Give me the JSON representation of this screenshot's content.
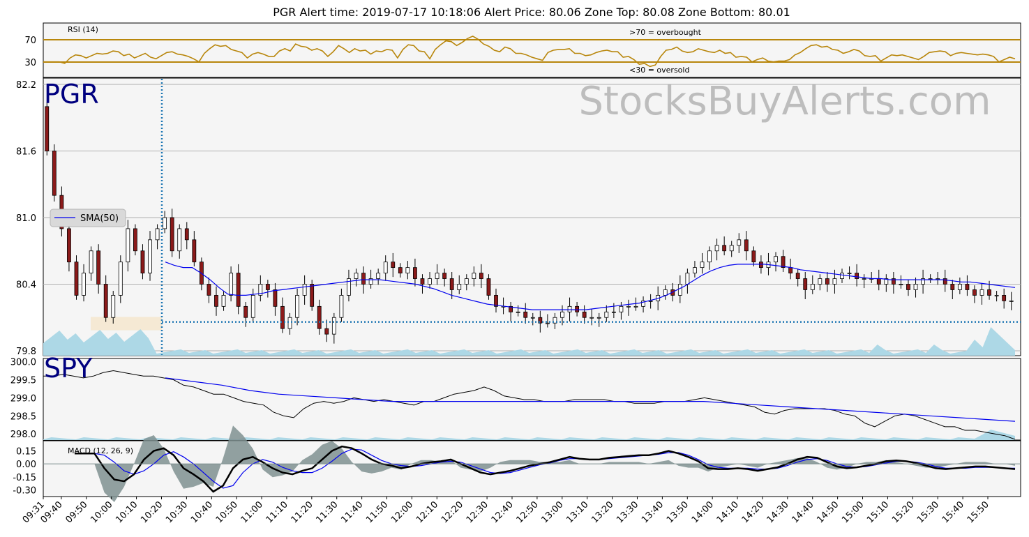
{
  "header": {
    "title": "PGR    Alert time: 2019-07-17 10:18:06         Alert Price: 80.06        Zone Top: 80.08  Zone Bottom: 80.01"
  },
  "watermark": "StocksBuyAlerts.com",
  "colors": {
    "rsi": "#b8860b",
    "sma": "#0000ee",
    "volume": "#add8e6",
    "zone": "#f5deb3",
    "alert_line": "#1f77b4",
    "macd_hist": "#7f9090",
    "panel_bg": "#f5f5f5"
  },
  "chart_data": [
    {
      "id": "rsi",
      "type": "line",
      "title": "RSI (14)",
      "ylim": [
        20,
        90
      ],
      "yticks": [
        "70",
        "30"
      ],
      "annotations": [
        ">70 = overbought",
        "<30 = oversold"
      ],
      "levels": [
        70,
        30
      ],
      "x_range": [
        "09:31",
        "15:58"
      ],
      "series": [
        {
          "values": [
            40,
            40,
            40,
            40,
            38,
            45,
            49,
            48,
            45,
            48,
            51,
            50,
            51,
            54,
            53,
            48,
            50,
            45,
            48,
            51,
            46,
            44,
            48,
            52,
            53,
            50,
            49,
            47,
            44,
            40,
            51,
            57,
            62,
            60,
            61,
            56,
            54,
            52,
            45,
            50,
            52,
            50,
            47,
            47,
            54,
            57,
            54,
            63,
            60,
            59,
            55,
            57,
            54,
            47,
            53,
            61,
            57,
            52,
            57,
            54,
            55,
            50,
            54,
            53,
            56,
            55,
            45,
            56,
            62,
            61,
            54,
            53,
            44,
            56,
            62,
            67,
            66,
            61,
            65,
            70,
            73,
            69,
            63,
            60,
            55,
            53,
            59,
            57,
            51,
            51,
            49,
            46,
            44,
            42,
            52,
            55,
            56,
            56,
            57,
            51,
            51,
            48,
            49,
            52,
            54,
            55,
            53,
            53,
            46,
            47,
            43,
            37,
            38,
            34,
            36,
            47,
            55,
            56,
            59,
            54,
            52,
            53,
            57,
            55,
            53,
            52,
            55,
            51,
            52,
            46,
            47,
            46,
            40,
            43,
            45,
            41,
            40,
            41,
            41,
            43,
            49,
            52,
            57,
            61,
            62,
            59,
            60,
            56,
            55,
            51,
            53,
            56,
            54,
            48,
            47,
            48,
            41,
            45,
            49,
            48,
            49,
            47,
            45,
            43,
            47,
            52,
            53,
            54,
            53,
            48,
            51,
            52,
            51,
            50,
            49,
            50,
            49,
            47,
            40,
            43,
            46,
            44
          ]
        }
      ]
    },
    {
      "id": "pgr",
      "type": "candlestick",
      "label": "PGR",
      "ylim": [
        79.8,
        82.2
      ],
      "yticks": [
        "82.2",
        "81.6",
        "81.0",
        "80.4",
        "79.8"
      ],
      "legend": "SMA(50)",
      "alert_price": 80.06,
      "zone_top": 80.08,
      "zone_bottom": 80.01,
      "alert_time": "10:18",
      "close": [
        81.6,
        81.2,
        80.9,
        80.6,
        80.3,
        80.5,
        80.7,
        80.4,
        80.1,
        80.3,
        80.6,
        80.9,
        80.7,
        80.5,
        80.8,
        80.9,
        81.0,
        80.7,
        80.9,
        80.8,
        80.6,
        80.4,
        80.3,
        80.2,
        80.3,
        80.5,
        80.2,
        80.1,
        80.3,
        80.4,
        80.35,
        80.2,
        80.0,
        80.1,
        80.3,
        80.4,
        80.2,
        80.0,
        79.95,
        80.1,
        80.3,
        80.45,
        80.5,
        80.4,
        80.45,
        80.5,
        80.6,
        80.55,
        80.5,
        80.55,
        80.45,
        80.4,
        80.45,
        80.5,
        80.45,
        80.35,
        80.4,
        80.45,
        80.5,
        80.45,
        80.3,
        80.2,
        80.2,
        80.15,
        80.15,
        80.1,
        80.1,
        80.05,
        80.05,
        80.1,
        80.15,
        80.2,
        80.15,
        80.1,
        80.1,
        80.1,
        80.15,
        80.15,
        80.2,
        80.2,
        80.2,
        80.25,
        80.25,
        80.3,
        80.35,
        80.3,
        80.4,
        80.5,
        80.55,
        80.6,
        80.7,
        80.75,
        80.7,
        80.75,
        80.8,
        80.7,
        80.6,
        80.55,
        80.6,
        80.65,
        80.55,
        80.5,
        80.45,
        80.35,
        80.4,
        80.45,
        80.4,
        80.45,
        80.5,
        80.5,
        80.45,
        80.45,
        80.45,
        80.4,
        80.45,
        80.4,
        80.4,
        80.35,
        80.4,
        80.45,
        80.45,
        80.45,
        80.4,
        80.35,
        80.4,
        80.35,
        80.3,
        80.35,
        80.3,
        80.3,
        80.25,
        80.25
      ],
      "sma": [
        80.6,
        80.57,
        80.55,
        80.55,
        80.5,
        80.44,
        80.37,
        80.31,
        80.3,
        80.3,
        80.31,
        80.32,
        80.34,
        80.35,
        80.36,
        80.37,
        80.38,
        80.39,
        80.4,
        80.41,
        80.42,
        80.43,
        80.44,
        80.44,
        80.44,
        80.43,
        80.42,
        80.41,
        80.4,
        80.38,
        80.36,
        80.33,
        80.3,
        80.28,
        80.26,
        80.24,
        80.22,
        80.21,
        80.2,
        80.19,
        80.18,
        80.17,
        80.17,
        80.17,
        80.17,
        80.17,
        80.17,
        80.17,
        80.18,
        80.19,
        80.2,
        80.21,
        80.22,
        80.23,
        80.25,
        80.27,
        80.3,
        80.34,
        80.38,
        80.43,
        80.48,
        80.52,
        80.55,
        80.57,
        80.58,
        80.58,
        80.58,
        80.58,
        80.57,
        80.56,
        80.55,
        80.53,
        80.52,
        80.51,
        80.5,
        80.49,
        80.48,
        80.47,
        80.46,
        80.45,
        80.45,
        80.44,
        80.44,
        80.44,
        80.44,
        80.44,
        80.44,
        80.44,
        80.43,
        80.42,
        80.42,
        80.41,
        80.4,
        80.39,
        80.38,
        80.37
      ]
    },
    {
      "id": "spy",
      "type": "line",
      "label": "SPY",
      "ylim": [
        297.85,
        300.05
      ],
      "yticks": [
        "300.0",
        "299.5",
        "299.0",
        "298.5",
        "298.0"
      ],
      "series": [
        {
          "values": [
            299.6,
            299.6,
            299.65,
            299.6,
            299.55,
            299.6,
            299.7,
            299.75,
            299.7,
            299.65,
            299.6,
            299.6,
            299.55,
            299.5,
            299.35,
            299.3,
            299.2,
            299.1,
            299.1,
            299.0,
            298.9,
            298.85,
            298.8,
            298.6,
            298.5,
            298.45,
            298.7,
            298.85,
            298.9,
            298.85,
            298.9,
            299.0,
            298.95,
            298.9,
            298.95,
            298.9,
            298.85,
            298.8,
            298.9,
            298.9,
            299.0,
            299.1,
            299.15,
            299.2,
            299.3,
            299.2,
            299.05,
            299.0,
            298.95,
            298.95,
            298.9,
            298.9,
            298.9,
            298.95,
            298.95,
            298.95,
            298.95,
            298.9,
            298.9,
            298.85,
            298.85,
            298.85,
            298.9,
            298.9,
            298.9,
            298.95,
            299.0,
            298.95,
            298.9,
            298.85,
            298.8,
            298.75,
            298.6,
            298.55,
            298.65,
            298.7,
            298.7,
            298.7,
            298.7,
            298.65,
            298.55,
            298.5,
            298.3,
            298.2,
            298.35,
            298.5,
            298.55,
            298.5,
            298.4,
            298.3,
            298.2,
            298.2,
            298.1,
            298.1,
            298.05,
            298.0,
            297.95,
            297.85
          ]
        },
        {
          "values": [
            299.55,
            299.45,
            299.35,
            299.2,
            299.1,
            299.05,
            299.0,
            298.95,
            298.9,
            298.9,
            298.9,
            298.9,
            298.9,
            298.9,
            298.9,
            298.9,
            298.9,
            298.9,
            298.9,
            298.9,
            298.85,
            298.8,
            298.75,
            298.7,
            298.65,
            298.6,
            298.55,
            298.5,
            298.45,
            298.4,
            298.35
          ]
        }
      ]
    },
    {
      "id": "macd",
      "type": "line",
      "title": "MACD (12, 26, 9)",
      "ylim": [
        -0.36,
        0.25
      ],
      "yticks": [
        "0.15",
        "0.00",
        "-0.15",
        "-0.30"
      ],
      "series": [
        {
          "values": [
            0.12,
            0.12,
            0.12,
            -0.05,
            -0.18,
            -0.2,
            -0.12,
            0.05,
            0.15,
            0.18,
            0.1,
            -0.05,
            -0.12,
            -0.2,
            -0.32,
            -0.25,
            -0.05,
            0.05,
            0.08,
            0.02,
            -0.05,
            -0.1,
            -0.12,
            -0.08,
            -0.05,
            0.05,
            0.15,
            0.2,
            0.18,
            0.12,
            0.05,
            0.0,
            -0.02,
            -0.05,
            -0.03,
            0.0,
            0.02,
            0.03,
            0.05,
            0.0,
            -0.05,
            -0.1,
            -0.12,
            -0.1,
            -0.08,
            -0.05,
            -0.02,
            0.0,
            0.02,
            0.05,
            0.08,
            0.06,
            0.05,
            0.05,
            0.07,
            0.08,
            0.09,
            0.1,
            0.1,
            0.12,
            0.15,
            0.12,
            0.08,
            0.03,
            -0.05,
            -0.06,
            -0.06,
            -0.05,
            -0.06,
            -0.08,
            -0.06,
            -0.04,
            0.0,
            0.05,
            0.08,
            0.07,
            0.02,
            -0.03,
            -0.05,
            -0.04,
            -0.02,
            0.0,
            0.03,
            0.04,
            0.03,
            0.01,
            -0.02,
            -0.05,
            -0.06,
            -0.05,
            -0.04,
            -0.03,
            -0.03,
            -0.04,
            -0.05,
            -0.06
          ]
        },
        {
          "values": [
            0.12,
            0.12,
            0.12,
            0.1,
            0.02,
            -0.08,
            -0.12,
            -0.08,
            0.0,
            0.1,
            0.14,
            0.08,
            0.0,
            -0.1,
            -0.2,
            -0.28,
            -0.25,
            -0.1,
            0.0,
            0.05,
            0.02,
            -0.04,
            -0.08,
            -0.1,
            -0.1,
            -0.05,
            0.03,
            0.12,
            0.17,
            0.16,
            0.1,
            0.04,
            0.0,
            -0.02,
            -0.03,
            -0.02,
            0.0,
            0.02,
            0.03,
            0.02,
            -0.02,
            -0.06,
            -0.1,
            -0.11,
            -0.1,
            -0.07,
            -0.04,
            -0.01,
            0.01,
            0.04,
            0.06,
            0.06,
            0.05,
            0.05,
            0.06,
            0.07,
            0.08,
            0.09,
            0.1,
            0.11,
            0.13,
            0.13,
            0.1,
            0.05,
            -0.01,
            -0.04,
            -0.05,
            -0.05,
            -0.05,
            -0.06,
            -0.06,
            -0.05,
            -0.02,
            0.02,
            0.05,
            0.06,
            0.04,
            0.0,
            -0.03,
            -0.04,
            -0.03,
            -0.01,
            0.01,
            0.03,
            0.03,
            0.02,
            0.0,
            -0.03,
            -0.05,
            -0.05,
            -0.05,
            -0.04,
            -0.04,
            -0.04,
            -0.05,
            -0.05
          ]
        }
      ]
    }
  ],
  "x_axis": {
    "ticks": [
      "09:31",
      "09:40",
      "09:50",
      "10:00",
      "10:10",
      "10:20",
      "10:30",
      "10:40",
      "10:50",
      "11:00",
      "11:10",
      "11:20",
      "11:30",
      "11:40",
      "11:50",
      "12:00",
      "12:10",
      "12:20",
      "12:30",
      "12:40",
      "12:50",
      "13:00",
      "13:10",
      "13:20",
      "13:30",
      "13:40",
      "13:50",
      "14:00",
      "14:10",
      "14:20",
      "14:30",
      "14:40",
      "14:50",
      "15:00",
      "15:10",
      "15:20",
      "15:30",
      "15:40",
      "15:50"
    ]
  }
}
